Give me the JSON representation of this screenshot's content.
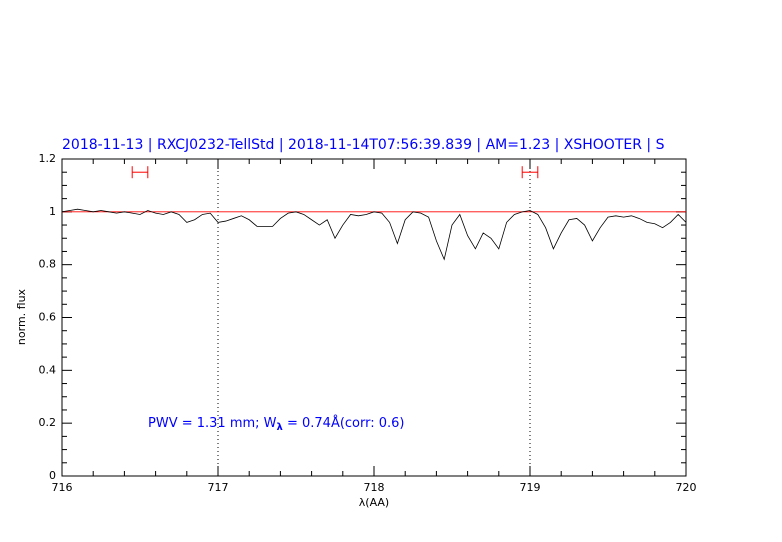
{
  "chart_data": {
    "type": "line",
    "title": "2018-11-13 | RXCJ0232-TellStd | 2018-11-14T07:56:39.839 | AM=1.23 | XSHOOTER | S",
    "xlabel": "λ(AA)",
    "ylabel": "norm. flux",
    "annotation": [
      "PWV = 1.31 mm; W",
      "λ",
      " = 0.74Å(corr: 0.6)"
    ],
    "x": [
      716.0,
      716.05,
      716.1,
      716.15,
      716.2,
      716.25,
      716.3,
      716.35,
      716.4,
      716.45,
      716.5,
      716.55,
      716.6,
      716.65,
      716.7,
      716.75,
      716.8,
      716.85,
      716.9,
      716.95,
      717.0,
      717.05,
      717.1,
      717.15,
      717.2,
      717.25,
      717.3,
      717.35,
      717.4,
      717.45,
      717.5,
      717.55,
      717.6,
      717.65,
      717.7,
      717.75,
      717.8,
      717.85,
      717.9,
      717.95,
      718.0,
      718.05,
      718.1,
      718.15,
      718.2,
      718.25,
      718.3,
      718.35,
      718.4,
      718.45,
      718.5,
      718.55,
      718.6,
      718.65,
      718.7,
      718.75,
      718.8,
      718.85,
      718.9,
      718.95,
      719.0,
      719.05,
      719.1,
      719.15,
      719.2,
      719.25,
      719.3,
      719.35,
      719.4,
      719.45,
      719.5,
      719.55,
      719.6,
      719.65,
      719.7,
      719.75,
      719.8,
      719.85,
      719.9,
      719.95,
      720.0
    ],
    "series": [
      {
        "color": "#000000",
        "values": [
          1.0,
          1.005,
          1.01,
          1.005,
          1.0,
          1.005,
          1.0,
          0.995,
          1.0,
          0.995,
          0.99,
          1.005,
          0.995,
          0.99,
          1.0,
          0.99,
          0.96,
          0.97,
          0.99,
          0.995,
          0.96,
          0.965,
          0.975,
          0.985,
          0.97,
          0.945,
          0.945,
          0.945,
          0.975,
          0.995,
          1.0,
          0.99,
          0.97,
          0.95,
          0.97,
          0.9,
          0.95,
          0.99,
          0.985,
          0.99,
          1.0,
          0.995,
          0.96,
          0.88,
          0.97,
          1.0,
          0.995,
          0.98,
          0.89,
          0.82,
          0.95,
          0.99,
          0.91,
          0.86,
          0.92,
          0.9,
          0.86,
          0.96,
          0.99,
          1.0,
          1.005,
          0.99,
          0.94,
          0.86,
          0.92,
          0.97,
          0.975,
          0.95,
          0.89,
          0.94,
          0.98,
          0.985,
          0.98,
          0.985,
          0.975,
          0.96,
          0.955,
          0.94,
          0.96,
          0.99,
          0.96
        ]
      }
    ],
    "xlim": [
      716,
      720
    ],
    "ylim": [
      0,
      1.2
    ],
    "xticks": [
      716,
      717,
      718,
      719,
      720
    ],
    "yticks": [
      0,
      0.2,
      0.4,
      0.6,
      0.8,
      1,
      1.2
    ],
    "vlines": [
      717,
      719
    ],
    "hline": 1,
    "hline_color": "#ff0000",
    "markers": [
      {
        "x": [
          716.45,
          716.55
        ],
        "y": 1.15
      },
      {
        "x": [
          718.95,
          719.05
        ],
        "y": 1.15
      }
    ],
    "marker_color": "#ff0000"
  }
}
